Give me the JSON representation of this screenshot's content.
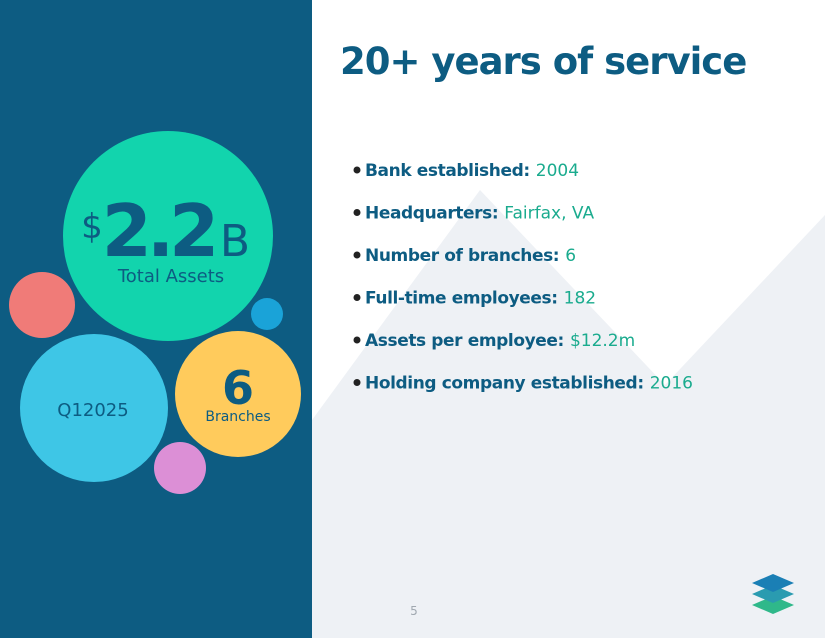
{
  "slide": {
    "title": "20+ years of service",
    "facts": [
      {
        "label": "Bank established:",
        "value": "2004"
      },
      {
        "label": "Headquarters:",
        "value": "Fairfax, VA"
      },
      {
        "label": "Number of branches:",
        "value": "6"
      },
      {
        "label": "Full-time employees:",
        "value": "182"
      },
      {
        "label": "Assets per employee:",
        "value": "$12.2m"
      },
      {
        "label": "Holding company established:",
        "value": "2016"
      }
    ],
    "assets": {
      "prefix": "$",
      "value": "2.2",
      "suffix": "B",
      "caption": "Total Assets"
    },
    "period": "Q12025",
    "branches": {
      "value": "6",
      "caption": "Branches"
    },
    "page_number": "5"
  }
}
